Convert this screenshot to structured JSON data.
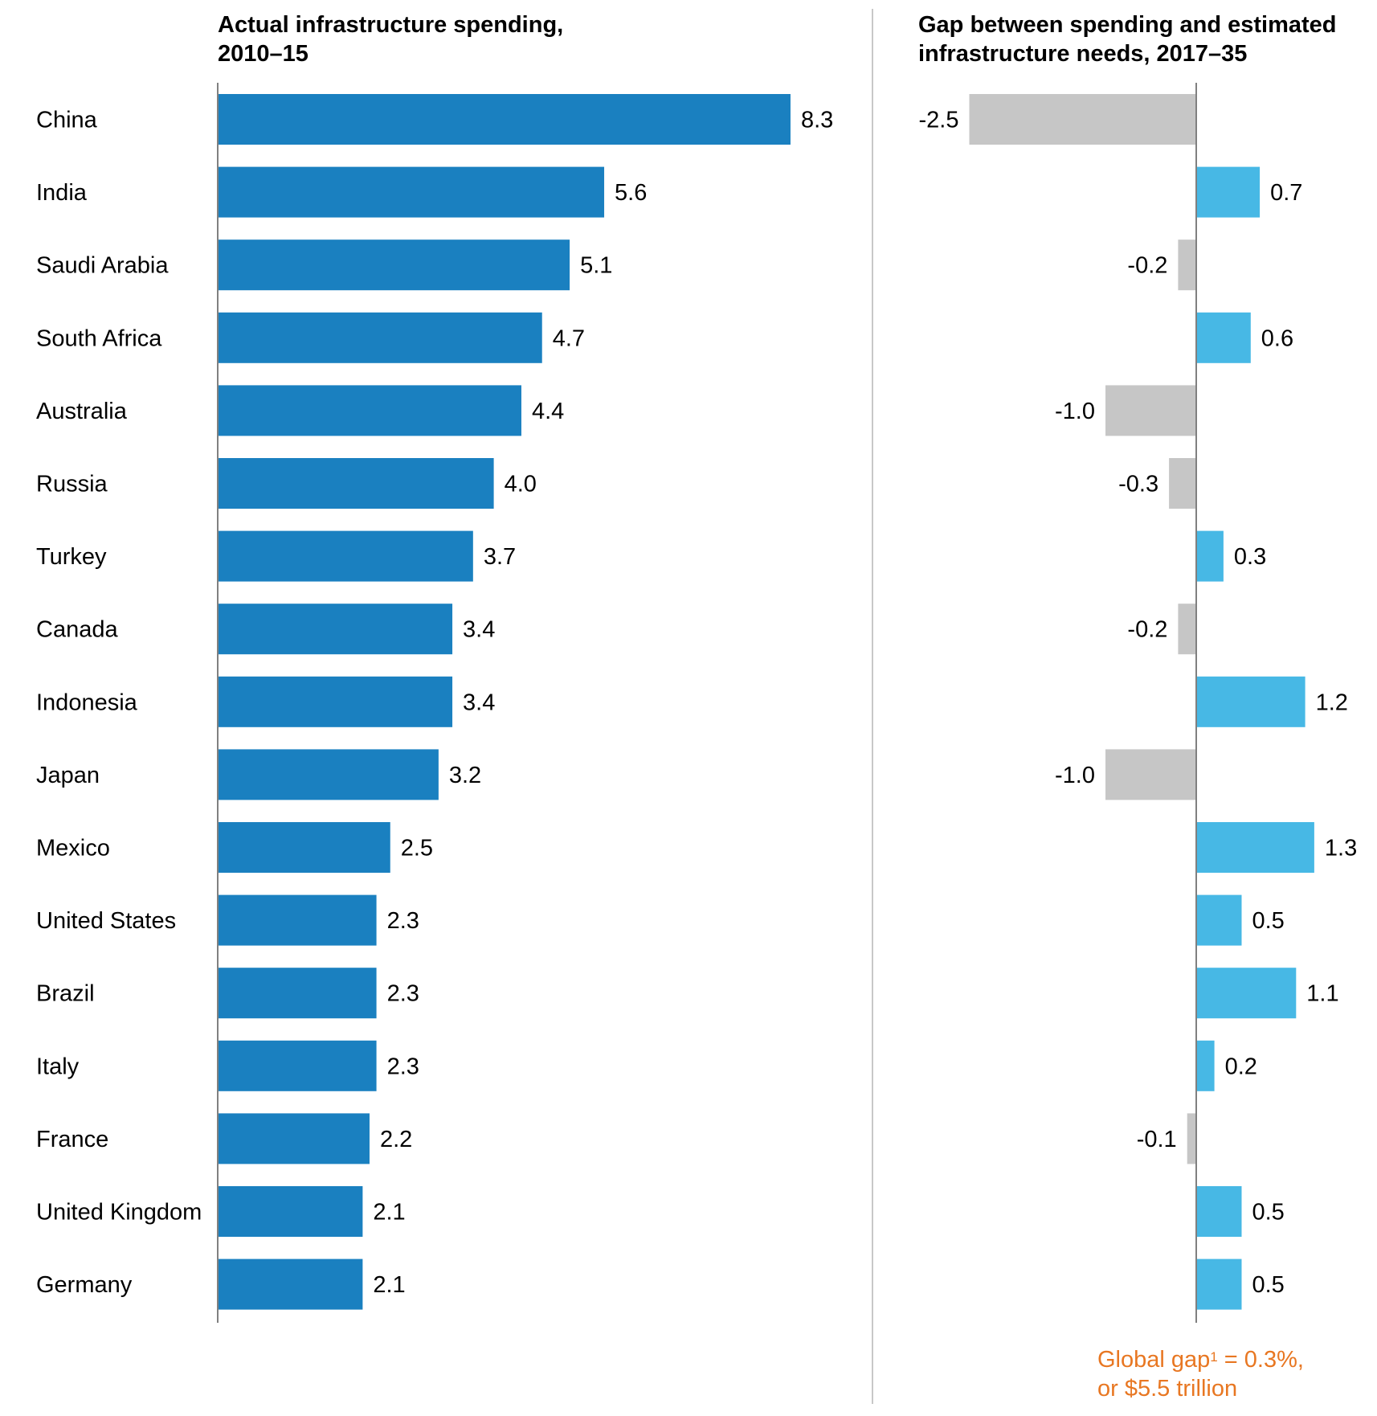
{
  "chart_data": [
    {
      "type": "bar",
      "orientation": "horizontal",
      "title": "Actual infrastructure spending, 2010–15",
      "title_lines": [
        "Actual infrastructure spending,",
        "2010–15"
      ],
      "categories": [
        "China",
        "India",
        "Saudi Arabia",
        "South Africa",
        "Australia",
        "Russia",
        "Turkey",
        "Canada",
        "Indonesia",
        "Japan",
        "Mexico",
        "United States",
        "Brazil",
        "Italy",
        "France",
        "United Kingdom",
        "Germany"
      ],
      "values": [
        8.3,
        5.6,
        5.1,
        4.7,
        4.4,
        4.0,
        3.7,
        3.4,
        3.4,
        3.2,
        2.5,
        2.3,
        2.3,
        2.3,
        2.2,
        2.1,
        2.1
      ],
      "labels": [
        "8.3",
        "5.6",
        "5.1",
        "4.7",
        "4.4",
        "4.0",
        "3.7",
        "3.4",
        "3.4",
        "3.2",
        "2.5",
        "2.3",
        "2.3",
        "2.3",
        "2.2",
        "2.1",
        "2.1"
      ],
      "color": "#1a80c0",
      "grid": false
    },
    {
      "type": "bar",
      "orientation": "horizontal",
      "title": "Gap between spending and estimated infrastructure needs, 2017–35",
      "title_lines": [
        "Gap between spending and estimated",
        "infrastructure needs, 2017–35"
      ],
      "categories": [
        "China",
        "India",
        "Saudi Arabia",
        "South Africa",
        "Australia",
        "Russia",
        "Turkey",
        "Canada",
        "Indonesia",
        "Japan",
        "Mexico",
        "United States",
        "Brazil",
        "Italy",
        "France",
        "United Kingdom",
        "Germany"
      ],
      "values": [
        -2.5,
        0.7,
        -0.2,
        0.6,
        -1.0,
        -0.3,
        0.3,
        -0.2,
        1.2,
        -1.0,
        1.3,
        0.5,
        1.1,
        0.2,
        -0.1,
        0.5,
        0.5
      ],
      "labels": [
        "-2.5",
        "0.7",
        "-0.2",
        "0.6",
        "-1.0",
        "-0.3",
        "0.3",
        "-0.2",
        "1.2",
        "-1.0",
        "1.3",
        "0.5",
        "1.1",
        "0.2",
        "-0.1",
        "0.5",
        "0.5"
      ],
      "positive_color": "#47b8e5",
      "negative_color": "#c6c6c6",
      "grid": false
    }
  ],
  "footnote": {
    "line1_pre": "Global gap",
    "sup": "1",
    "line1_post": " = 0.3%,",
    "line2": "or $5.5 trillion",
    "color": "#e87722"
  }
}
